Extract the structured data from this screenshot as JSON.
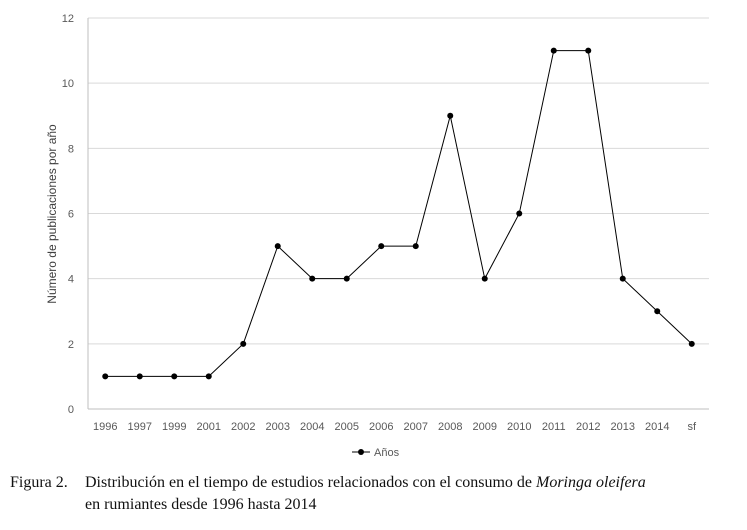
{
  "chart_data": {
    "type": "line",
    "title": "",
    "xlabel": "",
    "ylabel": "Número de publicaciones por año",
    "ylim": [
      0,
      12
    ],
    "yticks": [
      "0",
      "2",
      "4",
      "6",
      "8",
      "10",
      "12"
    ],
    "grid": true,
    "legend": "bottom",
    "categories": [
      "1996",
      "1997",
      "1999",
      "2001",
      "2002",
      "2003",
      "2004",
      "2005",
      "2006",
      "2007",
      "2008",
      "2009",
      "2010",
      "2011",
      "2012",
      "2013",
      "2014",
      "sf"
    ],
    "series": [
      {
        "name": "Años",
        "color": "#000000",
        "values": [
          1,
          1,
          1,
          1,
          2,
          5,
          4,
          4,
          5,
          5,
          9,
          4,
          6,
          11,
          11,
          4,
          3,
          2
        ]
      }
    ]
  },
  "caption": {
    "number": "Figura 2.",
    "text_plain": "Distribución en el tiempo de estudios relacionados con el consumo de ",
    "text_italic": "Moringa oleifera",
    "line2": "en rumiantes desde 1996 hasta 2014"
  }
}
